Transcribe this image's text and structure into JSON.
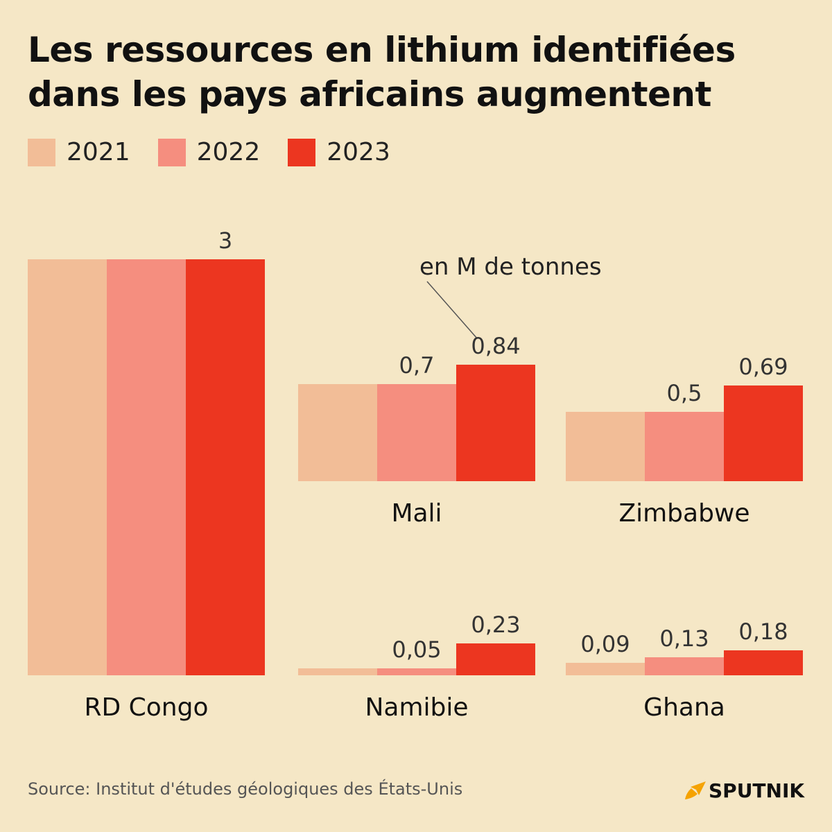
{
  "title": {
    "line1": "Les ressources en lithium identifiées",
    "line2": "dans les pays africains augmentent"
  },
  "legend": [
    {
      "label": "2021",
      "color": "#f2bd97"
    },
    {
      "label": "2022",
      "color": "#f58e7f"
    },
    {
      "label": "2023",
      "color": "#ec3620"
    }
  ],
  "annotation": "en M de tonnes",
  "source": "Source: Institut d'études géologiques des États-Unis",
  "brand": {
    "name": "SPUTNIK",
    "icon": "sputnik-logo-icon",
    "color": "#f5a200"
  },
  "chart_data": {
    "type": "bar",
    "unit": "en M de tonnes",
    "series_names": [
      "2021",
      "2022",
      "2023"
    ],
    "colors": [
      "#f2bd97",
      "#f58e7f",
      "#ec3620"
    ],
    "groups": [
      {
        "country": "RD Congo",
        "values": [
          3,
          3,
          3
        ],
        "labels": [
          "",
          "",
          "3"
        ]
      },
      {
        "country": "Mali",
        "values": [
          0.7,
          0.7,
          0.84
        ],
        "labels": [
          "",
          "0,7",
          "0,84"
        ]
      },
      {
        "country": "Zimbabwe",
        "values": [
          0.5,
          0.5,
          0.69
        ],
        "labels": [
          "",
          "0,5",
          "0,69"
        ]
      },
      {
        "country": "Namibie",
        "values": [
          0.05,
          0.05,
          0.23
        ],
        "labels": [
          "",
          "0,05",
          "0,23"
        ]
      },
      {
        "country": "Ghana",
        "values": [
          0.09,
          0.13,
          0.18
        ],
        "labels": [
          "0,09",
          "0,13",
          "0,18"
        ]
      }
    ]
  }
}
